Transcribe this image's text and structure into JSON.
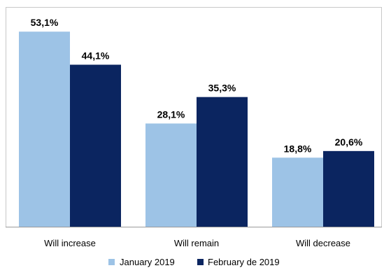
{
  "chart_data": {
    "type": "bar",
    "categories": [
      "Will increase",
      "Will remain",
      "Will decrease"
    ],
    "series": [
      {
        "name": "January 2019",
        "values": [
          53.1,
          28.1,
          18.8
        ],
        "labels": [
          "53,1%",
          "28,1%",
          "18,8%"
        ],
        "color": "#9dc3e6"
      },
      {
        "name": "February de 2019",
        "values": [
          44.1,
          35.3,
          20.6
        ],
        "labels": [
          "44,1%",
          "35,3%",
          "20,6%"
        ],
        "color": "#0b2560"
      }
    ],
    "ylim": [
      0,
      60
    ],
    "legend_position": "bottom",
    "grid": false
  }
}
